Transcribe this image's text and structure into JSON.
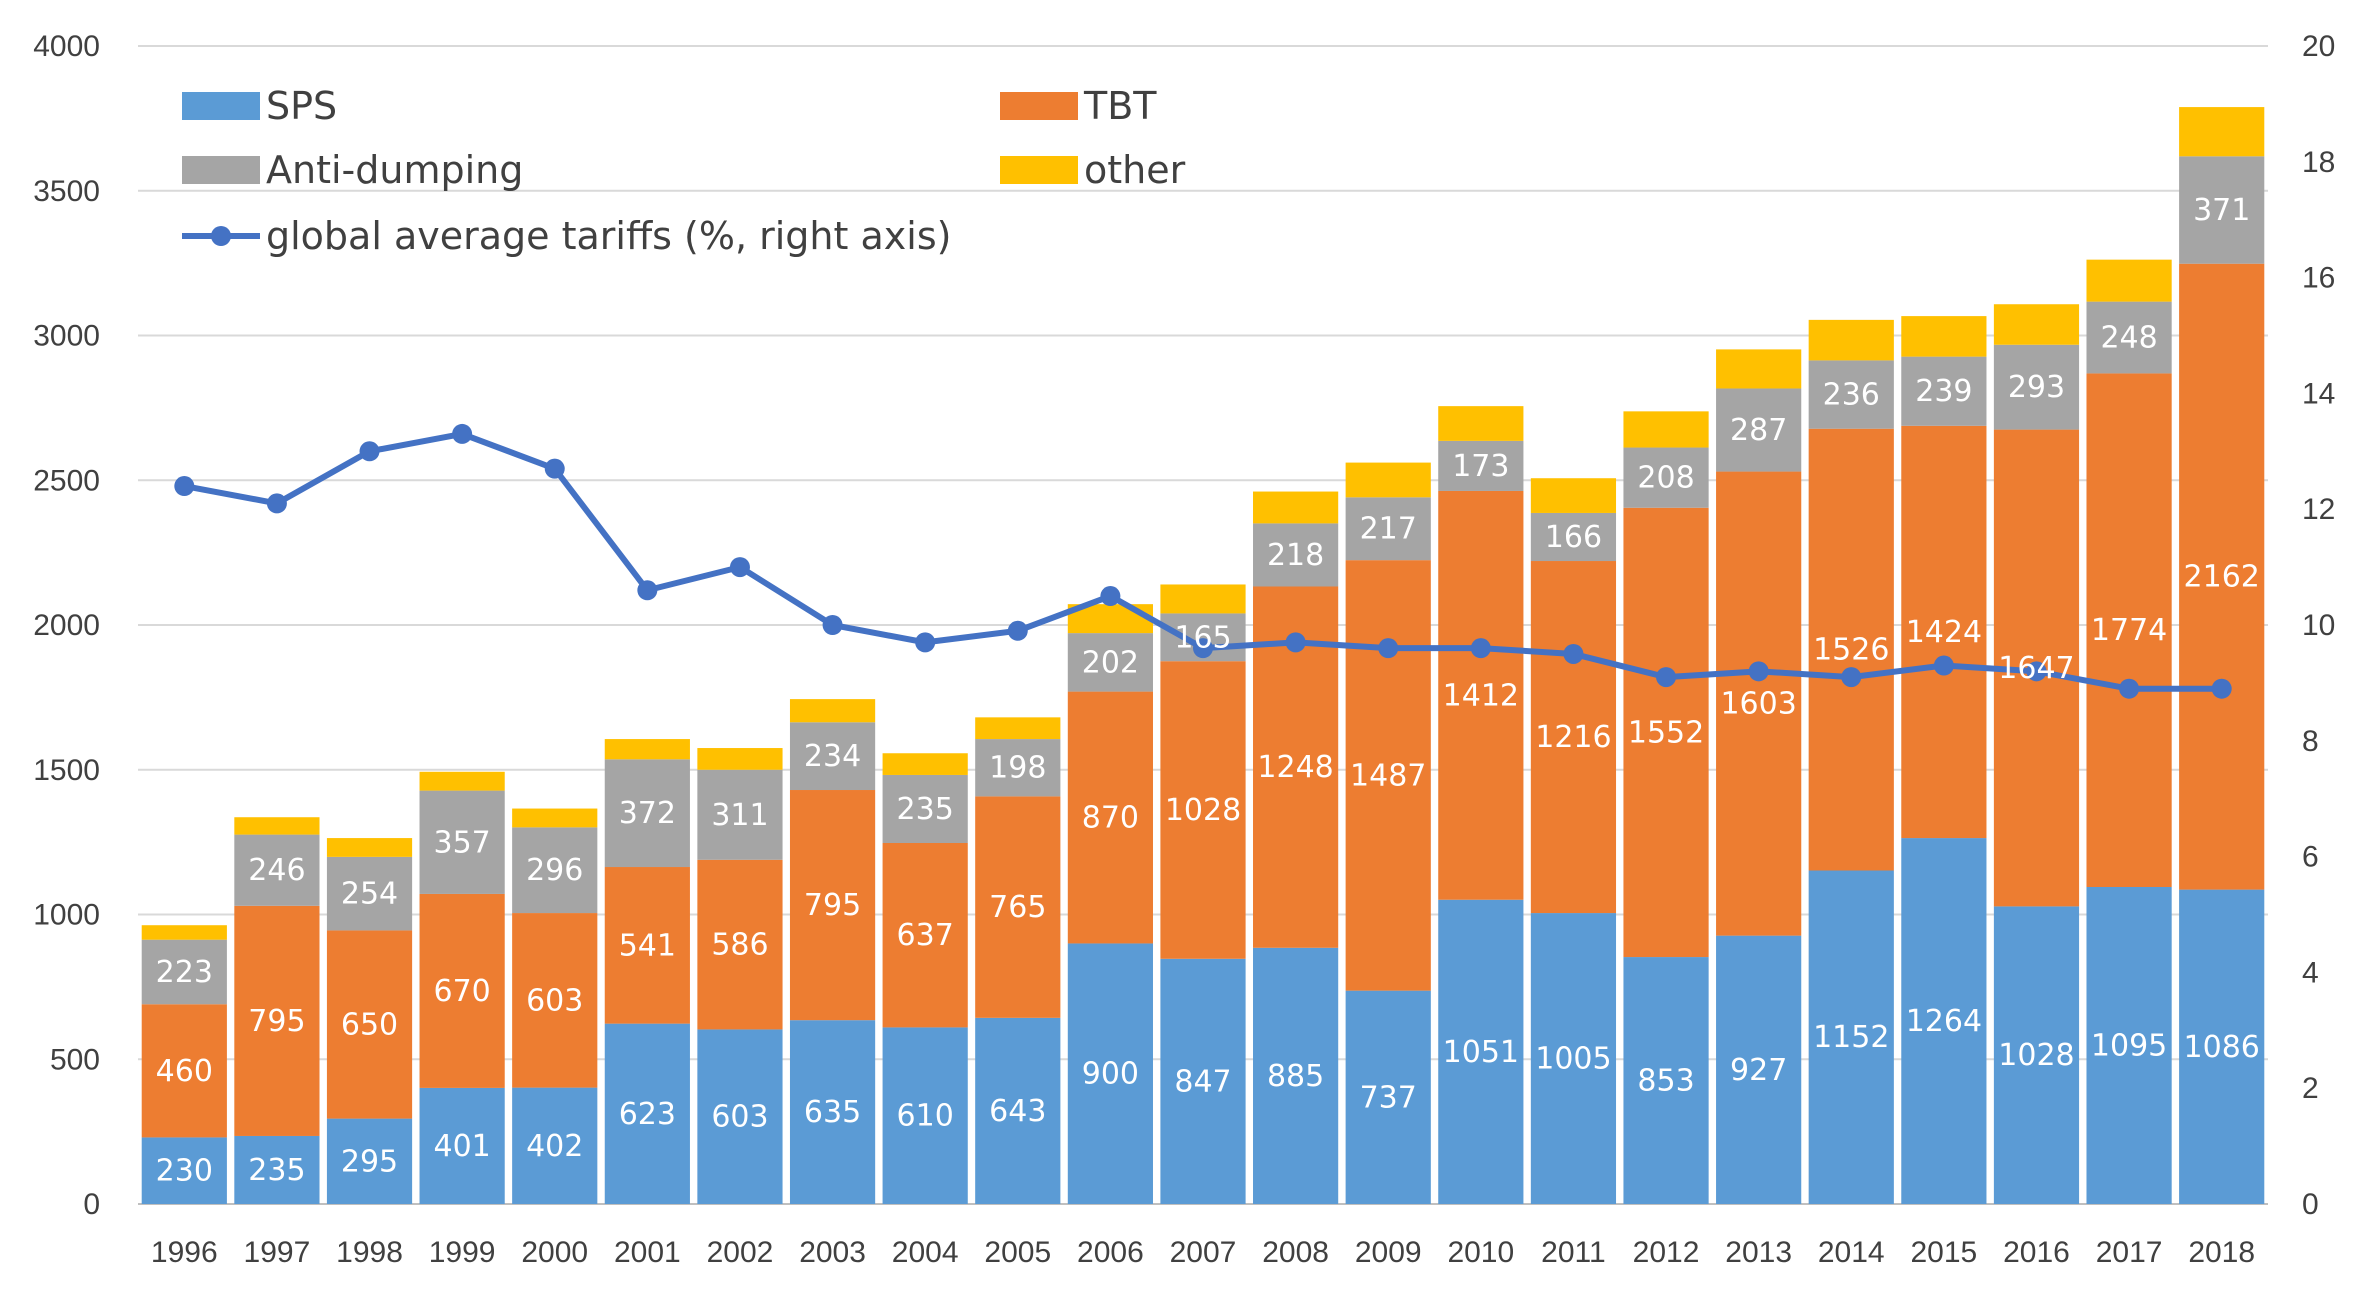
{
  "chart_data": {
    "type": "bar",
    "subtype": "stacked-bar-with-line",
    "categories": [
      "1996",
      "1997",
      "1998",
      "1999",
      "2000",
      "2001",
      "2002",
      "2003",
      "2004",
      "2005",
      "2006",
      "2007",
      "2008",
      "2009",
      "2010",
      "2011",
      "2012",
      "2013",
      "2014",
      "2015",
      "2016",
      "2017",
      "2018"
    ],
    "ylim": [
      0,
      4000
    ],
    "yticks": [
      "0",
      "500",
      "1000",
      "1500",
      "2000",
      "2500",
      "3000",
      "3500",
      "4000"
    ],
    "y2lim": [
      0,
      20
    ],
    "y2ticks": [
      "0",
      "2",
      "4",
      "6",
      "8",
      "10",
      "12",
      "14",
      "16",
      "18",
      "20"
    ],
    "grid": true,
    "legend_position": "top-left, inside",
    "series": [
      {
        "name": "SPS",
        "kind": "bar",
        "color": "#5B9BD5",
        "labeled": true,
        "values": [
          230,
          235,
          295,
          401,
          402,
          623,
          603,
          635,
          610,
          643,
          900,
          847,
          885,
          737,
          1051,
          1005,
          853,
          927,
          1152,
          1264,
          1028,
          1095,
          1086
        ]
      },
      {
        "name": "TBT",
        "kind": "bar",
        "color": "#ED7D31",
        "labeled": true,
        "values": [
          460,
          795,
          650,
          670,
          603,
          541,
          586,
          795,
          637,
          765,
          870,
          1028,
          1248,
          1487,
          1412,
          1216,
          1552,
          1603,
          1526,
          1424,
          1647,
          1774,
          2162
        ]
      },
      {
        "name": "Anti-dumping",
        "kind": "bar",
        "color": "#A5A5A5",
        "labeled": true,
        "values": [
          223,
          246,
          254,
          357,
          296,
          372,
          311,
          234,
          235,
          198,
          202,
          165,
          218,
          217,
          173,
          166,
          208,
          287,
          236,
          239,
          293,
          248,
          371
        ]
      },
      {
        "name": "other",
        "kind": "bar",
        "color": "#FFC000",
        "labeled": false,
        "values": [
          50,
          60,
          65,
          65,
          65,
          70,
          75,
          80,
          75,
          75,
          100,
          100,
          110,
          120,
          120,
          120,
          125,
          135,
          140,
          140,
          140,
          145,
          170
        ]
      },
      {
        "name": "global average tariffs (%, right axis)",
        "kind": "line",
        "axis": "right",
        "color": "#4472C4",
        "values": [
          12.4,
          12.1,
          13.0,
          13.3,
          12.7,
          10.6,
          11.0,
          10.0,
          9.7,
          9.9,
          10.5,
          9.6,
          9.7,
          9.6,
          9.6,
          9.5,
          9.1,
          9.2,
          9.1,
          9.3,
          9.2,
          8.9,
          8.9
        ]
      }
    ]
  }
}
